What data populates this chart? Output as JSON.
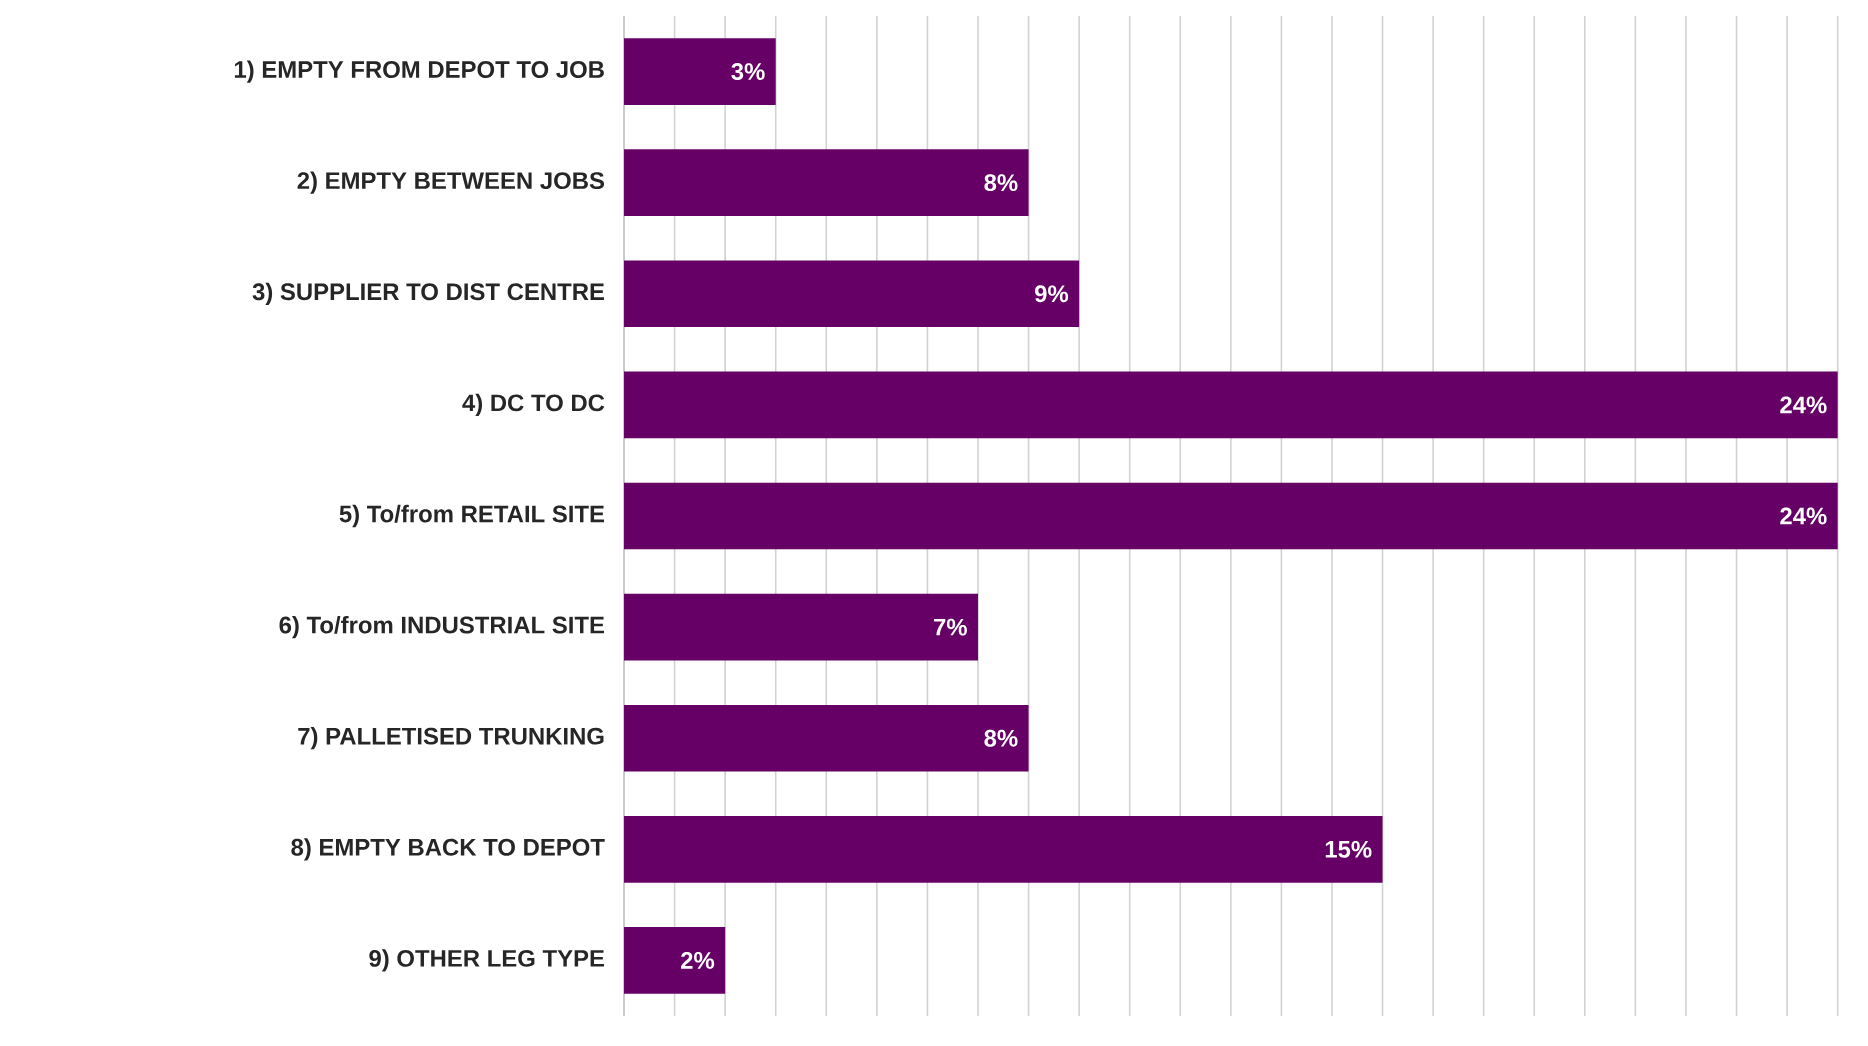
{
  "chart_data": {
    "type": "bar",
    "orientation": "horizontal",
    "categories": [
      "1) EMPTY FROM DEPOT TO JOB",
      "2) EMPTY BETWEEN JOBS",
      "3) SUPPLIER TO DIST CENTRE",
      "4) DC TO DC",
      "5) To/from RETAIL SITE",
      "6) To/from INDUSTRIAL SITE",
      "7) PALLETISED TRUNKING",
      "8) EMPTY BACK TO DEPOT",
      "9) OTHER LEG TYPE"
    ],
    "values": [
      3,
      8,
      9,
      24,
      24,
      7,
      8,
      15,
      2
    ],
    "value_labels": [
      "3%",
      "8%",
      "9%",
      "24%",
      "24%",
      "7%",
      "8%",
      "15%",
      "2%"
    ],
    "color": "#660066",
    "grid": "x",
    "tick_labels": "y"
  }
}
